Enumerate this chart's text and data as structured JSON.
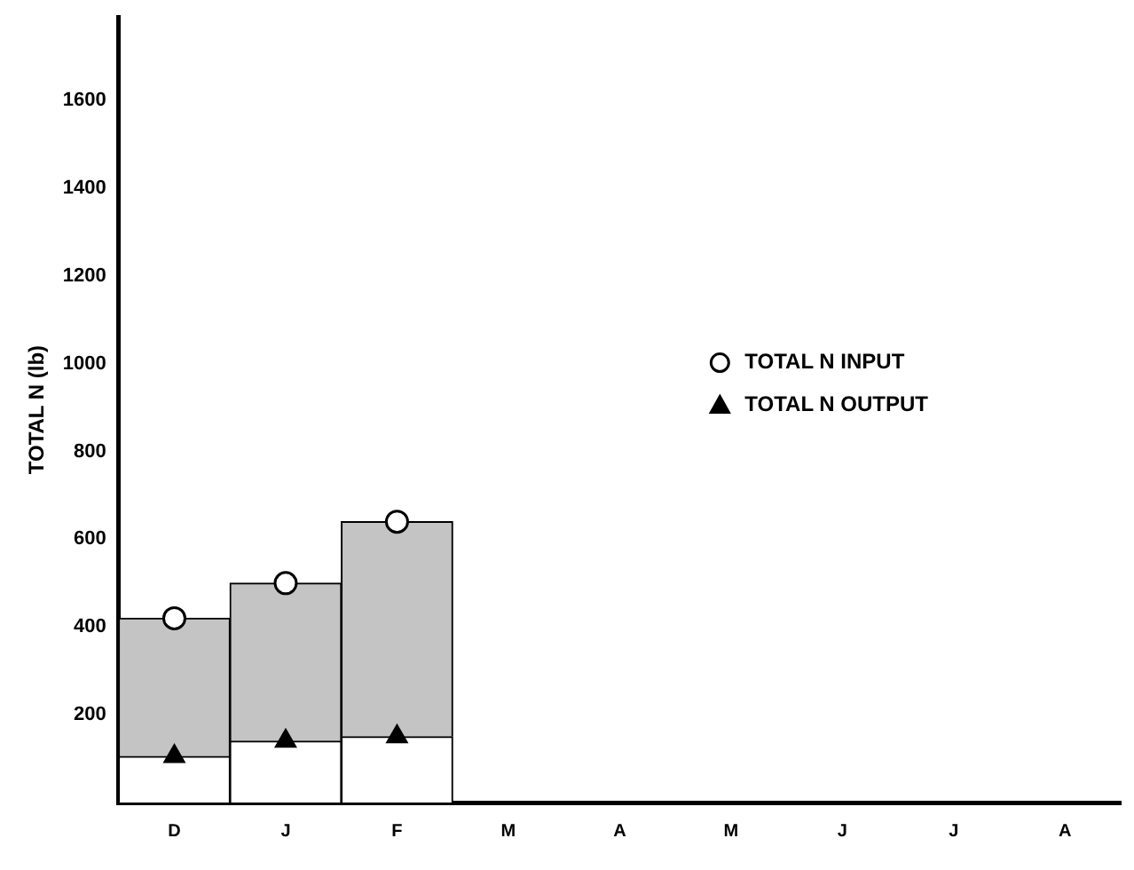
{
  "chart_data": {
    "type": "bar",
    "ylabel": "TOTAL N (lb)",
    "categories": [
      "D",
      "J",
      "F",
      "M",
      "A",
      "M",
      "J",
      "J",
      "A"
    ],
    "stacked": true,
    "series": [
      {
        "color": "#ffffff",
        "values": [
          105,
          140,
          150,
          null,
          null,
          null,
          null,
          null,
          null
        ]
      },
      {
        "color": "#c4c4c4",
        "values": [
          315,
          360,
          490,
          null,
          null,
          null,
          null,
          null,
          null
        ]
      },
      {
        "name": "TOTAL N INPUT",
        "type": "scatter",
        "marker": "circle",
        "color": "#000000",
        "x": [
          "D",
          "J",
          "F"
        ],
        "values": [
          420,
          500,
          640
        ]
      },
      {
        "name": "TOTAL N OUTPUT",
        "type": "scatter",
        "marker": "triangle",
        "color": "#000000",
        "x": [
          "D",
          "J",
          "F"
        ],
        "values": [
          105,
          140,
          150
        ]
      }
    ],
    "ylim": [
      0,
      1790
    ],
    "yticks": [
      200,
      400,
      600,
      800,
      1000,
      1200,
      1400,
      1600
    ],
    "grid": false,
    "legend": "right"
  }
}
